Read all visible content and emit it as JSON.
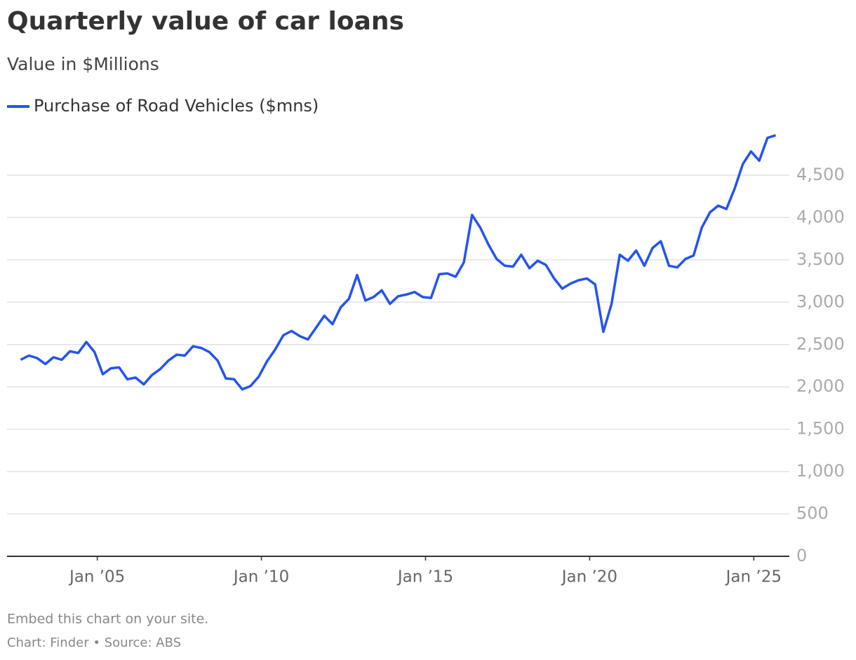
{
  "chart_data": {
    "type": "line",
    "title": "Quarterly value of car loans",
    "subtitle": "Value in $Millions",
    "x": [
      "2002-09",
      "2002-12",
      "2003-03",
      "2003-06",
      "2003-09",
      "2003-12",
      "2004-03",
      "2004-06",
      "2004-09",
      "2004-12",
      "2005-03",
      "2005-06",
      "2005-09",
      "2005-12",
      "2006-03",
      "2006-06",
      "2006-09",
      "2006-12",
      "2007-03",
      "2007-06",
      "2007-09",
      "2007-12",
      "2008-03",
      "2008-06",
      "2008-09",
      "2008-12",
      "2009-03",
      "2009-06",
      "2009-09",
      "2009-12",
      "2010-03",
      "2010-06",
      "2010-09",
      "2010-12",
      "2011-03",
      "2011-06",
      "2011-09",
      "2011-12",
      "2012-03",
      "2012-06",
      "2012-09",
      "2012-12",
      "2013-03",
      "2013-06",
      "2013-09",
      "2013-12",
      "2014-03",
      "2014-06",
      "2014-09",
      "2014-12",
      "2015-03",
      "2015-06",
      "2015-09",
      "2015-12",
      "2016-03",
      "2016-06",
      "2016-09",
      "2016-12",
      "2017-03",
      "2017-06",
      "2017-09",
      "2017-12",
      "2018-03",
      "2018-06",
      "2018-09",
      "2018-12",
      "2019-03",
      "2019-06",
      "2019-09",
      "2019-12",
      "2020-03",
      "2020-06",
      "2020-09",
      "2020-12",
      "2021-03",
      "2021-06",
      "2021-09",
      "2021-12",
      "2022-03",
      "2022-06",
      "2022-09",
      "2022-12",
      "2023-03",
      "2023-06",
      "2023-09",
      "2023-12",
      "2024-03",
      "2024-06",
      "2024-09",
      "2024-12",
      "2025-03",
      "2025-06",
      "2025-09"
    ],
    "series": [
      {
        "name": "Purchase of Road Vehicles ($mns)",
        "color": "#2453f0",
        "values": [
          2320,
          2370,
          2340,
          2270,
          2350,
          2320,
          2420,
          2400,
          2530,
          2410,
          2150,
          2220,
          2230,
          2090,
          2110,
          2030,
          2140,
          2210,
          2310,
          2380,
          2370,
          2480,
          2460,
          2410,
          2310,
          2100,
          2090,
          1970,
          2010,
          2120,
          2300,
          2440,
          2610,
          2660,
          2600,
          2560,
          2700,
          2840,
          2740,
          2940,
          3040,
          3320,
          3020,
          3060,
          3140,
          2980,
          3070,
          3090,
          3120,
          3060,
          3050,
          3330,
          3340,
          3300,
          3470,
          4030,
          3880,
          3680,
          3510,
          3430,
          3420,
          3560,
          3400,
          3490,
          3440,
          3280,
          3160,
          3220,
          3260,
          3280,
          3210,
          2650,
          2980,
          3560,
          3490,
          3610,
          3430,
          3640,
          3720,
          3430,
          3410,
          3510,
          3550,
          3880,
          4060,
          4140,
          4100,
          4340,
          4630,
          4780,
          4670,
          4940,
          4970
        ]
      }
    ],
    "xlim": [
      "2002-04",
      "2026-02"
    ],
    "xticks": [
      {
        "value": "2005-01",
        "label": "Jan ’05"
      },
      {
        "value": "2010-01",
        "label": "Jan ’10"
      },
      {
        "value": "2015-01",
        "label": "Jan ’15"
      },
      {
        "value": "2020-01",
        "label": "Jan ’20"
      },
      {
        "value": "2025-01",
        "label": "Jan ’25"
      }
    ],
    "ylim": [
      0,
      5000
    ],
    "yticks": [
      0,
      500,
      {
        "value": 1000,
        "label": "1,000"
      },
      {
        "value": 1500,
        "label": "1,500"
      },
      {
        "value": 2000,
        "label": "2,000"
      },
      {
        "value": 2500,
        "label": "2,500"
      },
      {
        "value": 3000,
        "label": "3,000"
      },
      {
        "value": 3500,
        "label": "3,500"
      },
      {
        "value": 4000,
        "label": "4,000"
      },
      {
        "value": 4500,
        "label": "4,500"
      }
    ],
    "grid": true,
    "footer": {
      "embed": "Embed this chart on your site.",
      "credit": "Chart: Finder • Source: ABS"
    }
  }
}
